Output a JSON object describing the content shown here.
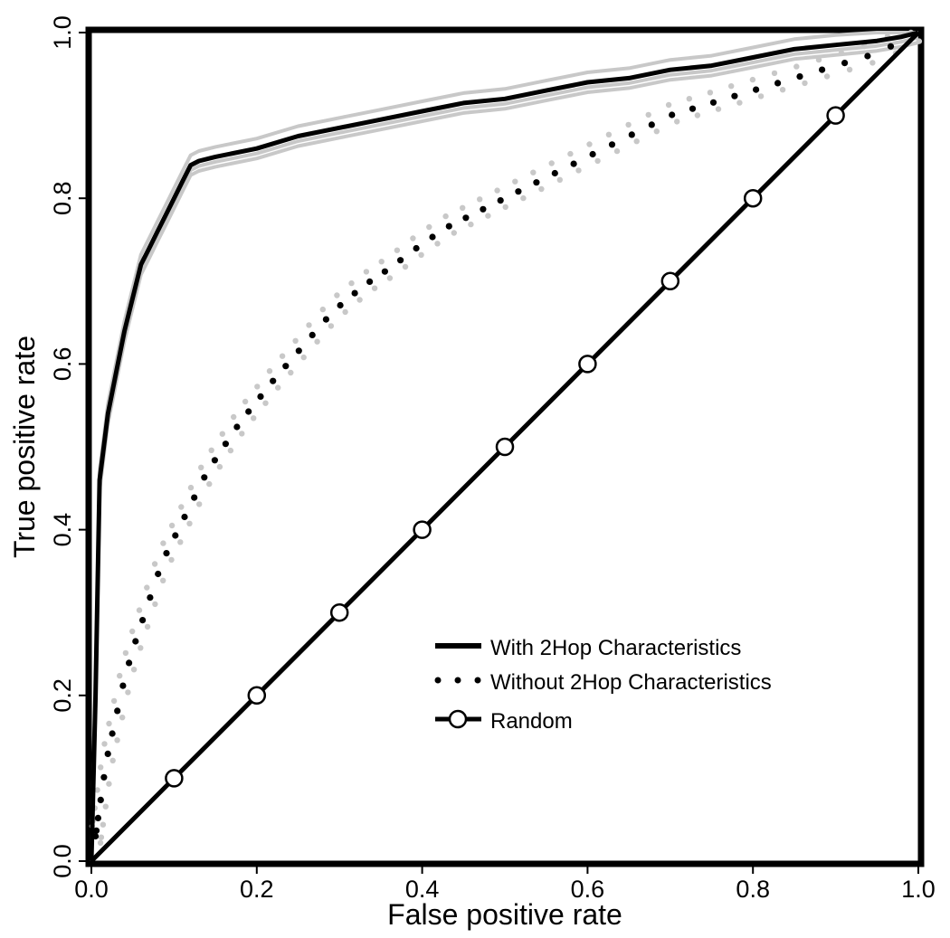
{
  "chart_data": {
    "type": "line",
    "title": "",
    "xlabel": "False positive rate",
    "ylabel": "True positive rate",
    "xlim": [
      0,
      1
    ],
    "ylim": [
      0,
      1
    ],
    "x_ticks": [
      "0.0",
      "0.2",
      "0.4",
      "0.6",
      "0.8",
      "1.0"
    ],
    "y_ticks": [
      "0.0",
      "0.2",
      "0.4",
      "0.6",
      "0.8",
      "1.0"
    ],
    "grid": false,
    "legend_position": "bottom-right",
    "colors": {
      "main": "#000000",
      "shadow": "#c8c8c8"
    },
    "series": [
      {
        "name": "With 2Hop Characteristics",
        "style": "solid",
        "x": [
          0,
          0.005,
          0.01,
          0.015,
          0.02,
          0.03,
          0.04,
          0.05,
          0.06,
          0.07,
          0.08,
          0.09,
          0.1,
          0.11,
          0.12,
          0.13,
          0.15,
          0.2,
          0.25,
          0.3,
          0.35,
          0.4,
          0.45,
          0.5,
          0.55,
          0.6,
          0.65,
          0.7,
          0.75,
          0.8,
          0.85,
          0.9,
          0.95,
          0.98,
          1.0
        ],
        "values": [
          0,
          0.2,
          0.46,
          0.5,
          0.54,
          0.59,
          0.64,
          0.68,
          0.72,
          0.74,
          0.76,
          0.78,
          0.8,
          0.82,
          0.84,
          0.845,
          0.85,
          0.86,
          0.875,
          0.885,
          0.895,
          0.905,
          0.915,
          0.92,
          0.93,
          0.94,
          0.945,
          0.955,
          0.96,
          0.97,
          0.98,
          0.985,
          0.99,
          0.995,
          1.0
        ]
      },
      {
        "name": "Without 2Hop Characteristics",
        "style": "dotted",
        "x": [
          0,
          0.005,
          0.01,
          0.015,
          0.02,
          0.03,
          0.04,
          0.05,
          0.06,
          0.07,
          0.08,
          0.09,
          0.1,
          0.11,
          0.12,
          0.14,
          0.16,
          0.18,
          0.2,
          0.22,
          0.25,
          0.28,
          0.3,
          0.33,
          0.36,
          0.4,
          0.43,
          0.46,
          0.5,
          0.55,
          0.6,
          0.65,
          0.7,
          0.75,
          0.8,
          0.85,
          0.9,
          0.95,
          0.98,
          1.0
        ],
        "values": [
          0,
          0.03,
          0.065,
          0.1,
          0.13,
          0.175,
          0.22,
          0.255,
          0.285,
          0.315,
          0.345,
          0.37,
          0.39,
          0.41,
          0.43,
          0.47,
          0.5,
          0.53,
          0.555,
          0.58,
          0.615,
          0.65,
          0.67,
          0.695,
          0.715,
          0.745,
          0.765,
          0.78,
          0.8,
          0.825,
          0.85,
          0.875,
          0.9,
          0.915,
          0.93,
          0.945,
          0.96,
          0.975,
          0.99,
          1.0
        ]
      },
      {
        "name": "Random",
        "style": "solid-circles",
        "x": [
          0,
          0.1,
          0.2,
          0.3,
          0.4,
          0.5,
          0.6,
          0.7,
          0.8,
          0.9,
          1.0
        ],
        "values": [
          0,
          0.1,
          0.2,
          0.3,
          0.4,
          0.5,
          0.6,
          0.7,
          0.8,
          0.9,
          1.0
        ],
        "markers": [
          0.1,
          0.2,
          0.3,
          0.4,
          0.5,
          0.6,
          0.7,
          0.8,
          0.9
        ]
      }
    ]
  }
}
